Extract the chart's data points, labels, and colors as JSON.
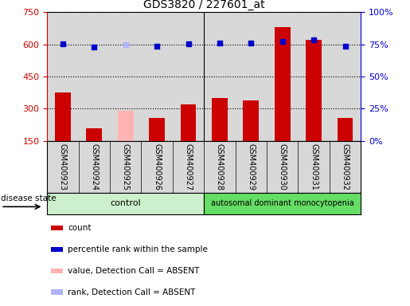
{
  "title": "GDS3820 / 227601_at",
  "samples": [
    "GSM400923",
    "GSM400924",
    "GSM400925",
    "GSM400926",
    "GSM400927",
    "GSM400928",
    "GSM400929",
    "GSM400930",
    "GSM400931",
    "GSM400932"
  ],
  "counts": [
    375,
    210,
    290,
    258,
    320,
    350,
    340,
    680,
    620,
    255
  ],
  "percentile_ranks": [
    75.5,
    73,
    74.5,
    73.5,
    75.5,
    76,
    76,
    77.5,
    78.5,
    73.5
  ],
  "absent_mask": [
    false,
    false,
    true,
    false,
    false,
    false,
    false,
    false,
    false,
    false
  ],
  "control_count": 5,
  "disease_count": 5,
  "ylim_left": [
    150,
    750
  ],
  "ylim_right": [
    0,
    100
  ],
  "yticks_left": [
    150,
    300,
    450,
    600,
    750
  ],
  "yticks_right": [
    0,
    25,
    50,
    75,
    100
  ],
  "ytick_labels_right": [
    "0%",
    "25%",
    "50%",
    "75%",
    "100%"
  ],
  "bar_color_normal": "#cc0000",
  "bar_color_absent": "#ffb3b3",
  "scatter_color_normal": "#0000cc",
  "scatter_color_absent": "#b3b3ff",
  "control_bg_light": "#ccf0cc",
  "control_bg": "#aae8aa",
  "disease_bg": "#66dd66",
  "plot_bg": "#d8d8d8",
  "legend_count_label": "count",
  "legend_rank_label": "percentile rank within the sample",
  "legend_absent_val_label": "value, Detection Call = ABSENT",
  "legend_absent_rank_label": "rank, Detection Call = ABSENT",
  "xlabel_disease_state": "disease state",
  "control_label": "control",
  "disease_label": "autosomal dominant monocytopenia"
}
